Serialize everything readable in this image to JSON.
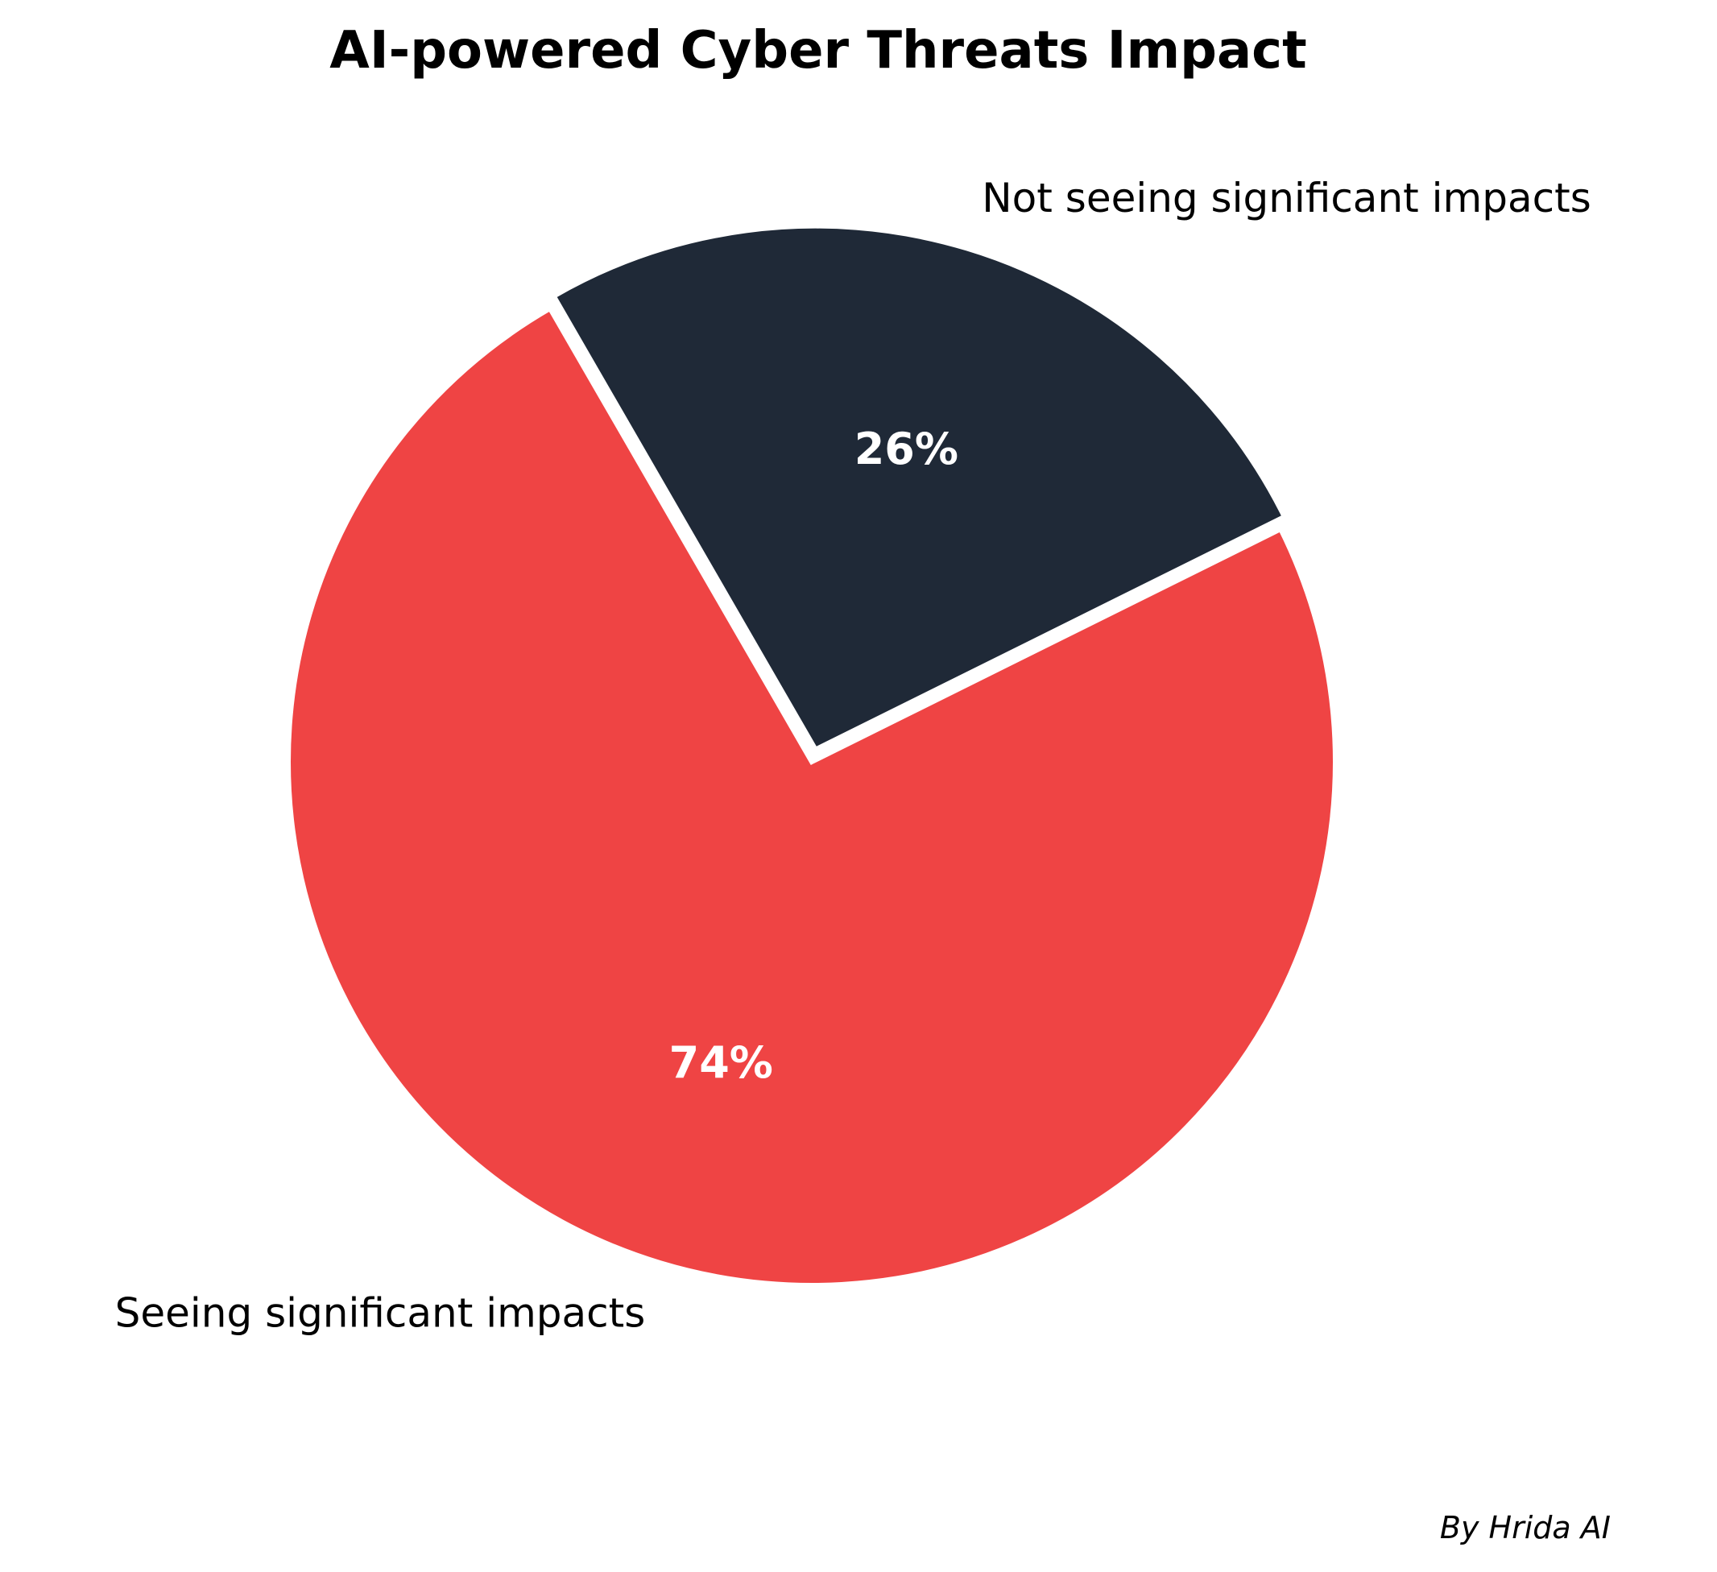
{
  "chart_data": {
    "type": "pie",
    "title": "AI-powered Cyber Threats Impact",
    "slices": [
      {
        "label": "Seeing significant impacts",
        "value": 74,
        "pct_label": "74%",
        "color": "#ef4444"
      },
      {
        "label": "Not seeing significant impacts",
        "value": 26,
        "pct_label": "26%",
        "color": "#1f2937"
      }
    ],
    "separator_color": "#ffffff",
    "credit": "By Hrida AI"
  }
}
